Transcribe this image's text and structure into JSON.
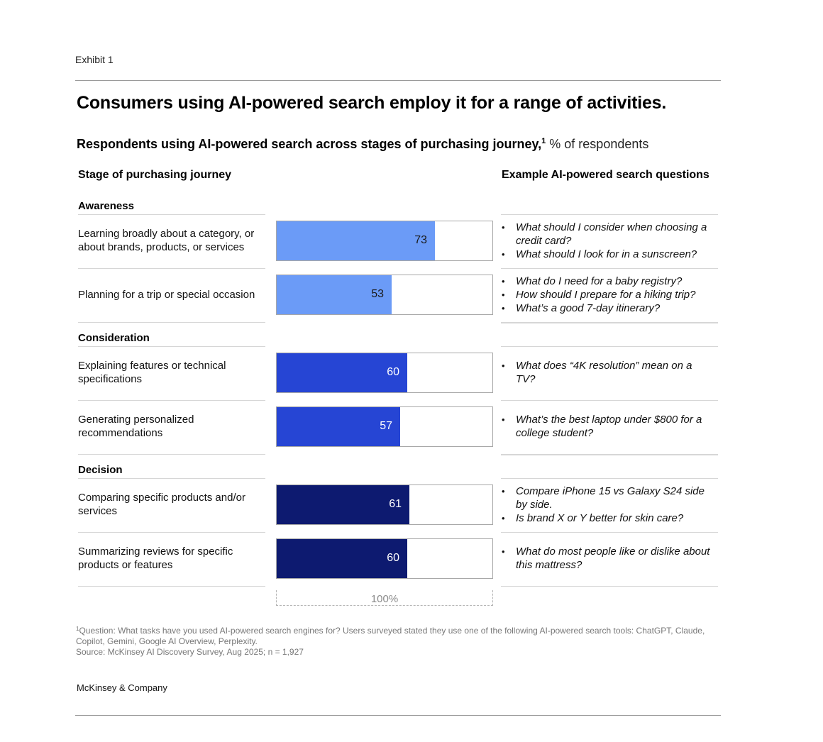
{
  "exhibit": "Exhibit 1",
  "title": "Consumers using AI-powered search employ it for a range of activities.",
  "subtitle": {
    "main": "Respondents using AI-powered search across stages of purchasing journey,",
    "sup": "1",
    "unit": " % of respondents"
  },
  "headers": {
    "stage": "Stage of purchasing journey",
    "examples": "Example AI-powered search questions"
  },
  "colors": {
    "awareness": "#6b9bf7",
    "consideration": "#2645d4",
    "decision": "#0d1a70"
  },
  "chart_data": {
    "type": "bar",
    "orientation": "horizontal",
    "xlim": [
      0,
      100
    ],
    "total_label": "100%",
    "groups": [
      {
        "name": "Awareness",
        "color_key": "awareness",
        "value_color": "#1a1a1a",
        "rows": [
          {
            "category": "Learning broadly about a category, or about brands, products, or services",
            "value": 73,
            "questions": [
              "What should I consider when choosing a credit card?",
              "What should I look for in a sunscreen?"
            ]
          },
          {
            "category": "Planning for a trip or special occasion",
            "value": 53,
            "questions": [
              "What do I need for a baby registry?",
              "How should I prepare for a hiking trip?",
              "What’s a good 7-day itinerary?"
            ]
          }
        ]
      },
      {
        "name": "Consideration",
        "color_key": "consideration",
        "value_color": "#ffffff",
        "rows": [
          {
            "category": "Explaining features or technical specifications",
            "value": 60,
            "questions": [
              "What does “4K resolution” mean on a TV?"
            ]
          },
          {
            "category": "Generating personalized recommendations",
            "value": 57,
            "questions": [
              "What’s the best laptop under $800 for a college student?"
            ]
          }
        ]
      },
      {
        "name": "Decision",
        "color_key": "decision",
        "value_color": "#ffffff",
        "rows": [
          {
            "category": "Comparing specific products and/or services",
            "value": 61,
            "questions": [
              "Compare iPhone 15 vs Galaxy S24 side by side.",
              "Is brand X or Y better for skin care?"
            ]
          },
          {
            "category": "Summarizing reviews for specific products or features",
            "value": 60,
            "questions": [
              "What do most people like or dislike about this mattress?"
            ]
          }
        ]
      }
    ]
  },
  "footnote": {
    "sup": "1",
    "question": "Question: What tasks have you used AI-powered search engines for? Users surveyed stated they use one of the following AI-powered search tools: ChatGPT, Claude, Copilot, Gemini, Google AI Overview, Perplexity.",
    "source": "Source: McKinsey AI Discovery Survey, Aug 2025; n = 1,927"
  },
  "brand": "McKinsey & Company"
}
